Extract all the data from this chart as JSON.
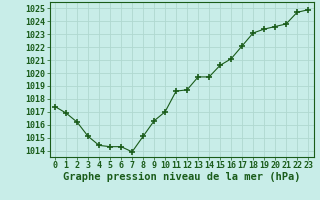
{
  "x": [
    0,
    1,
    2,
    3,
    4,
    5,
    6,
    7,
    8,
    9,
    10,
    11,
    12,
    13,
    14,
    15,
    16,
    17,
    18,
    19,
    20,
    21,
    22,
    23
  ],
  "y": [
    1017.4,
    1016.9,
    1016.2,
    1015.1,
    1014.4,
    1014.3,
    1014.3,
    1013.9,
    1015.1,
    1016.3,
    1017.0,
    1018.6,
    1018.7,
    1019.7,
    1019.7,
    1020.6,
    1021.1,
    1022.1,
    1023.1,
    1023.4,
    1023.6,
    1023.8,
    1024.7,
    1024.9
  ],
  "xlim": [
    -0.5,
    23.5
  ],
  "ylim": [
    1013.5,
    1025.5
  ],
  "yticks": [
    1014,
    1015,
    1016,
    1017,
    1018,
    1019,
    1020,
    1021,
    1022,
    1023,
    1024,
    1025
  ],
  "xticks": [
    0,
    1,
    2,
    3,
    4,
    5,
    6,
    7,
    8,
    9,
    10,
    11,
    12,
    13,
    14,
    15,
    16,
    17,
    18,
    19,
    20,
    21,
    22,
    23
  ],
  "xlabel": "Graphe pression niveau de la mer (hPa)",
  "line_color": "#1a5c1a",
  "marker": "+",
  "marker_size": 4,
  "marker_lw": 1.2,
  "bg_color": "#c8ede8",
  "grid_color": "#b0d8d0",
  "tick_label_color": "#1a5c1a",
  "xlabel_color": "#1a5c1a",
  "xlabel_fontsize": 7.5,
  "tick_fontsize": 6.0
}
